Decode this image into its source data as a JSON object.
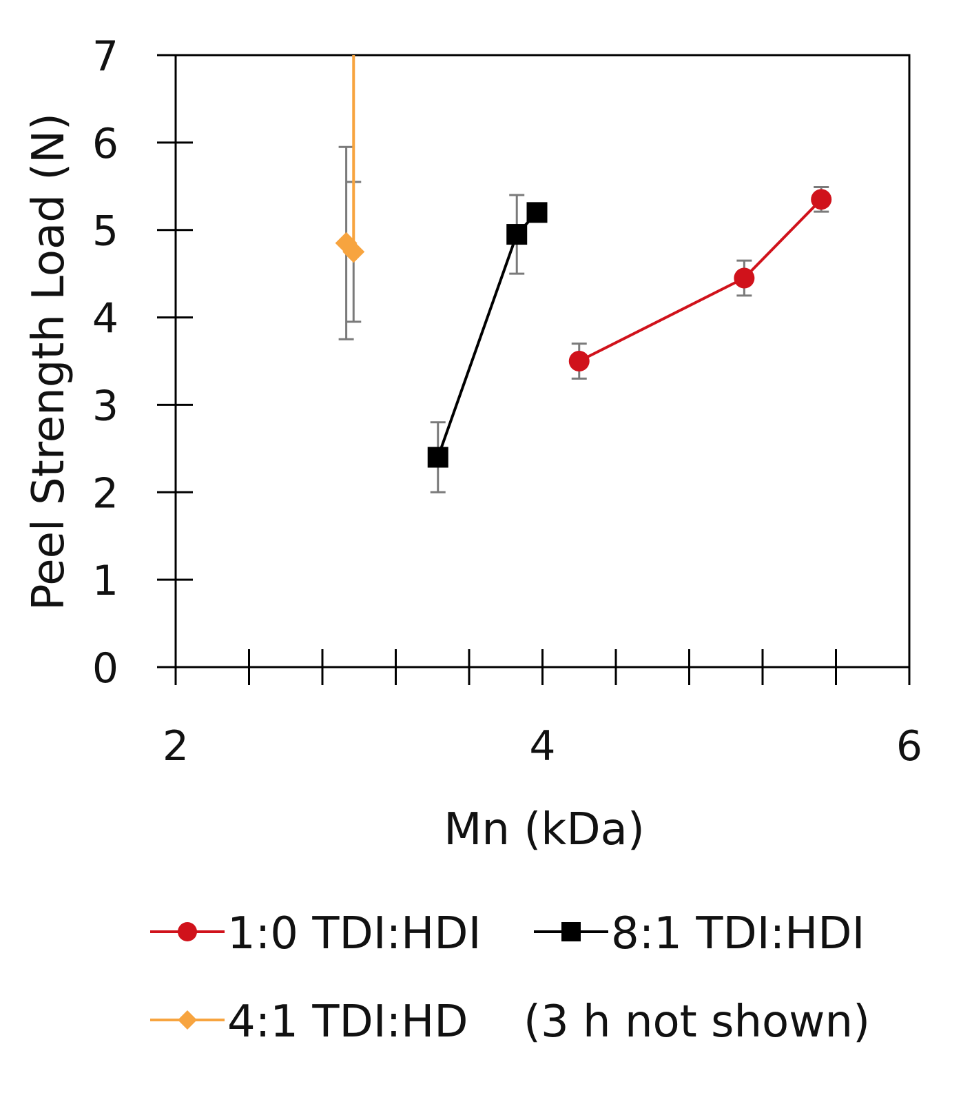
{
  "chart_data": {
    "type": "scatter",
    "title": "",
    "xlabel": "Mn (kDa)",
    "ylabel": "Peel Strength Load (N)",
    "xlim": [
      2,
      6
    ],
    "ylim": [
      0,
      7
    ],
    "x_major_ticks": [
      2,
      4,
      6
    ],
    "x_minor_step": 0.4,
    "y_ticks": [
      0,
      1,
      2,
      3,
      4,
      5,
      6,
      7
    ],
    "grid": false,
    "legend_position": "bottom",
    "legend_note": "(3 h not shown)",
    "series": [
      {
        "name": "1:0 TDI:HDI",
        "color": "#d0121b",
        "marker": "circle",
        "points": [
          {
            "x": 4.2,
            "y": 3.5,
            "err": 0.2
          },
          {
            "x": 5.1,
            "y": 4.45,
            "err": 0.2
          },
          {
            "x": 5.52,
            "y": 5.35,
            "err": 0.14
          }
        ]
      },
      {
        "name": "8:1 TDI:HDI",
        "color": "#000000",
        "marker": "square",
        "points": [
          {
            "x": 3.43,
            "y": 2.4,
            "err": 0.4
          },
          {
            "x": 3.86,
            "y": 4.95,
            "err": 0.45
          },
          {
            "x": 3.97,
            "y": 5.2,
            "err": 0.1
          }
        ]
      },
      {
        "name": "4:1 TDI:HD",
        "color": "#f7a43f",
        "marker": "diamond",
        "points": [
          {
            "x": 2.93,
            "y": 4.85,
            "err": 1.1
          },
          {
            "x": 2.97,
            "y": 4.75,
            "err": 0.8
          },
          {
            "x": 2.97,
            "y": 7.0,
            "err": null
          }
        ]
      }
    ]
  }
}
